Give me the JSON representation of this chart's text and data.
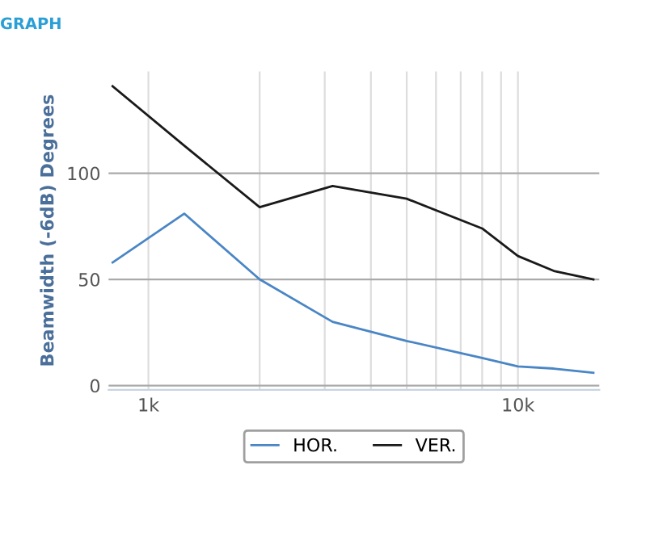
{
  "chart_data": {
    "type": "line",
    "title": "GRAPH",
    "ylabel": "Beamwidth (-6dB) Degrees",
    "log": "x",
    "x": [
      800,
      1250,
      2000,
      3150,
      5000,
      8000,
      10000,
      12500,
      16000
    ],
    "series": [
      {
        "name": "HOR.",
        "color": "#4a86c5",
        "values": [
          58,
          81,
          50,
          30,
          21,
          13,
          9,
          8,
          6
        ]
      },
      {
        "name": "VER.",
        "color": "#1a1a1a",
        "values": [
          141,
          113,
          84,
          94,
          88,
          74,
          61,
          54,
          50
        ]
      }
    ],
    "xlim": [
      780,
      16600
    ],
    "ylim": [
      -2,
      148
    ],
    "xticks": [
      {
        "value": 1000,
        "label": "1k"
      },
      {
        "value": 2000,
        "label": null
      },
      {
        "value": 3000,
        "label": null
      },
      {
        "value": 4000,
        "label": null
      },
      {
        "value": 5000,
        "label": null
      },
      {
        "value": 6000,
        "label": null
      },
      {
        "value": 7000,
        "label": null
      },
      {
        "value": 8000,
        "label": null
      },
      {
        "value": 9000,
        "label": null
      },
      {
        "value": 10000,
        "label": "10k"
      }
    ],
    "yticks": [
      0,
      50,
      100
    ],
    "grid": true,
    "legend": "bottom",
    "marker": "none",
    "line_style": "solid"
  }
}
